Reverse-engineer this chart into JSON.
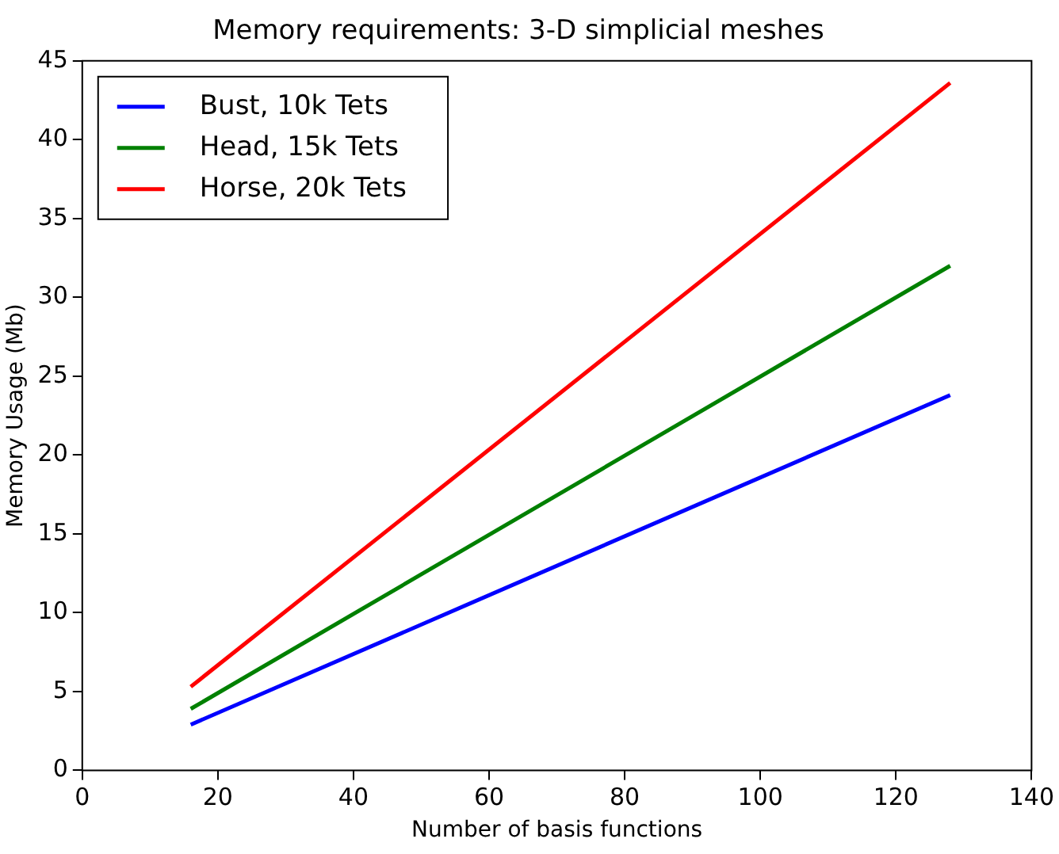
{
  "chart_data": {
    "type": "line",
    "title": "Memory requirements: 3-D simplicial meshes",
    "xlabel": "Number of basis functions",
    "ylabel": "Memory Usage (Mb)",
    "x": [
      16,
      128
    ],
    "series": [
      {
        "name": "Bust, 10k Tets",
        "color": "#0000ff",
        "values": [
          2.9,
          23.8
        ]
      },
      {
        "name": "Head, 15k Tets",
        "color": "#008000",
        "values": [
          3.9,
          32.0
        ]
      },
      {
        "name": "Horse, 20k Tets",
        "color": "#ff0000",
        "values": [
          5.3,
          43.6
        ]
      }
    ],
    "xlim": [
      0,
      140
    ],
    "xticks": [
      0,
      20,
      40,
      60,
      80,
      100,
      120,
      140
    ],
    "ylim": [
      0,
      45
    ],
    "yticks": [
      0,
      5,
      10,
      15,
      20,
      25,
      30,
      35,
      40,
      45
    ],
    "grid": false,
    "legend": "top left",
    "marker": "none",
    "line_style": "solid"
  }
}
